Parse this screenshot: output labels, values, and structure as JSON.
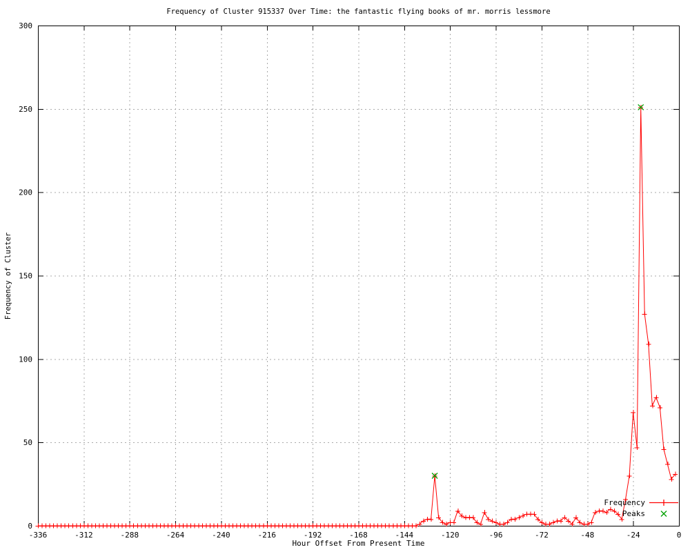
{
  "chart_data": {
    "type": "line",
    "title": "Frequency of Cluster 915337 Over Time: the fantastic flying books of mr. morris lessmore",
    "xlabel": "Hour Offset From Present Time",
    "ylabel": "Frequency of Cluster",
    "xlim": [
      -336,
      0
    ],
    "ylim": [
      0,
      300
    ],
    "xticks": [
      -336,
      -312,
      -288,
      -264,
      -240,
      -216,
      -192,
      -168,
      -144,
      -120,
      -96,
      -72,
      -48,
      -24,
      0
    ],
    "yticks": [
      0,
      50,
      100,
      150,
      200,
      250,
      300
    ],
    "grid": true,
    "grid_color": "#a8a8a8",
    "axis_color": "#000000",
    "legend_position": "inside-bottom-right",
    "series": [
      {
        "name": "Frequency",
        "marker": "+",
        "color": "#ff0000",
        "x_start": -336,
        "x_step": 2,
        "values": [
          0,
          0,
          0,
          0,
          0,
          0,
          0,
          0,
          0,
          0,
          0,
          0,
          0,
          0,
          0,
          0,
          0,
          0,
          0,
          0,
          0,
          0,
          0,
          0,
          0,
          0,
          0,
          0,
          0,
          0,
          0,
          0,
          0,
          0,
          0,
          0,
          0,
          0,
          0,
          0,
          0,
          0,
          0,
          0,
          0,
          0,
          0,
          0,
          0,
          0,
          0,
          0,
          0,
          0,
          0,
          0,
          0,
          0,
          0,
          0,
          0,
          0,
          0,
          0,
          0,
          0,
          0,
          0,
          0,
          0,
          0,
          0,
          0,
          0,
          0,
          0,
          0,
          0,
          0,
          0,
          0,
          0,
          0,
          0,
          0,
          0,
          0,
          0,
          0,
          0,
          0,
          0,
          0,
          0,
          0,
          0,
          0,
          0,
          0,
          0,
          1,
          3,
          4,
          4,
          30,
          5,
          2,
          1,
          2,
          2,
          9,
          6,
          5,
          5,
          5,
          2,
          1,
          8,
          4,
          3,
          2,
          1,
          1,
          2,
          4,
          4,
          5,
          6,
          7,
          7,
          7,
          4,
          2,
          1,
          1,
          2,
          3,
          3,
          5,
          3,
          1,
          5,
          2,
          1,
          1,
          2,
          8,
          9,
          9,
          8,
          10,
          9,
          7,
          4,
          16,
          30,
          68,
          47,
          251,
          127,
          109,
          72,
          77,
          71,
          46,
          37,
          28,
          31
        ]
      },
      {
        "name": "Peaks",
        "marker": "x",
        "color": "#00a000",
        "points": [
          [
            -128,
            30
          ],
          [
            -20,
            251
          ]
        ]
      }
    ]
  }
}
